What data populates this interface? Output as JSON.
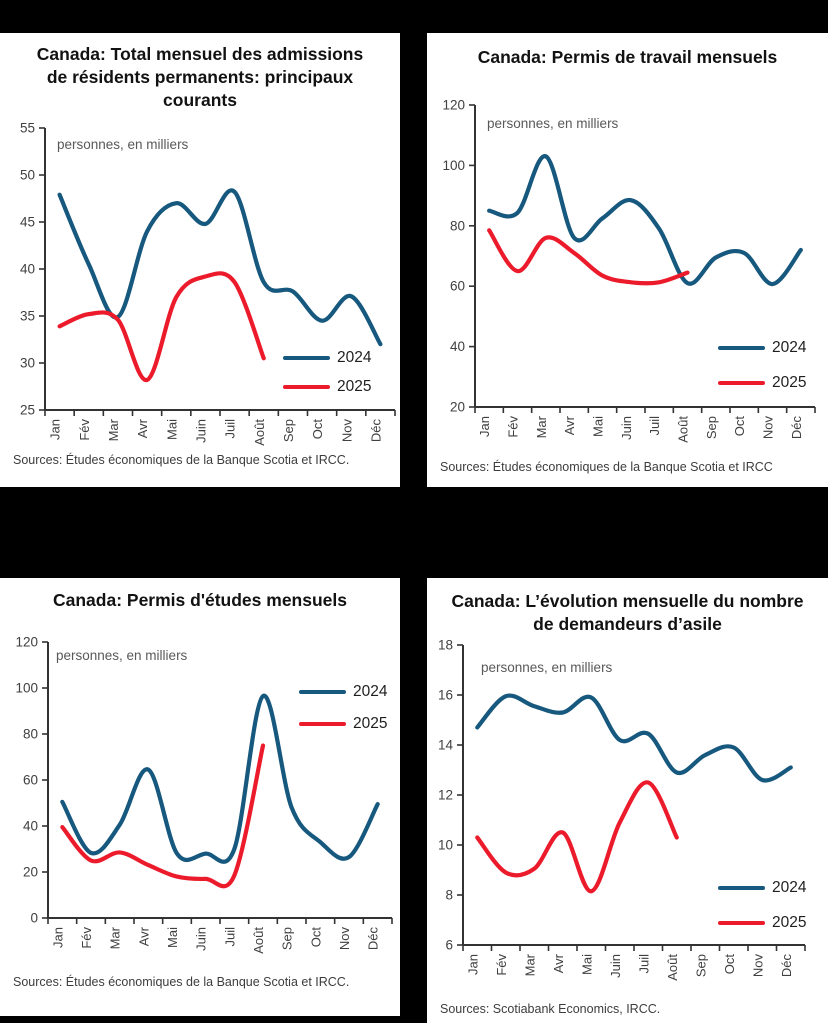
{
  "months": [
    "Jan",
    "Fév",
    "Mar",
    "Avr",
    "Mai",
    "Juin",
    "Juil",
    "Août",
    "Sep",
    "Oct",
    "Nov",
    "Déc"
  ],
  "colors": {
    "series_2024": "#16587E",
    "series_2025": "#EC1B2B",
    "axis": "#333333",
    "tick_label": "#404040",
    "unit_label": "#595959",
    "title": "#121212",
    "panel_background": "#FFFFFF",
    "page_background": "#000000"
  },
  "chart_data": [
    {
      "type": "line",
      "title": "Canada: Total mensuel des admissions de résidents permanents: principaux courants",
      "unit_label": "personnes, en milliers",
      "source": "Sources: Études économiques de la Banque Scotia et IRCC.",
      "categories": [
        "Jan",
        "Fév",
        "Mar",
        "Avr",
        "Mai",
        "Juin",
        "Juil",
        "Août",
        "Sep",
        "Oct",
        "Nov",
        "Déc"
      ],
      "ylim": [
        25,
        55
      ],
      "yticks": [
        55,
        50,
        45,
        40,
        35,
        30,
        25
      ],
      "grid": false,
      "legend_position": "bottom-right",
      "series": [
        {
          "name": "2024",
          "color": "#16587E",
          "values": [
            47.9,
            40.5,
            34.9,
            44,
            47,
            44.8,
            48.2,
            38.6,
            37.6,
            34.5,
            37.1,
            32
          ]
        },
        {
          "name": "2025",
          "color": "#EC1B2B",
          "values": [
            33.9,
            35.2,
            34.6,
            28.2,
            37,
            39.2,
            38.6,
            30.5,
            null,
            null,
            null,
            null
          ]
        }
      ]
    },
    {
      "type": "line",
      "title": "Canada: Permis de travail mensuels",
      "unit_label": "personnes, en milliers",
      "source": "Sources: Études économiques de la Banque Scotia et IRCC",
      "categories": [
        "Jan",
        "Fév",
        "Mar",
        "Avr",
        "Mai",
        "Juin",
        "Juil",
        "Août",
        "Sep",
        "Oct",
        "Nov",
        "Déc"
      ],
      "ylim": [
        20,
        120
      ],
      "yticks": [
        120,
        100,
        80,
        60,
        40,
        20
      ],
      "grid": false,
      "legend_position": "right",
      "series": [
        {
          "name": "2024",
          "color": "#16587E",
          "values": [
            85,
            84.3,
            103,
            76,
            82.5,
            88.5,
            79,
            61,
            69.5,
            71,
            60.7,
            72
          ]
        },
        {
          "name": "2025",
          "color": "#EC1B2B",
          "values": [
            78.5,
            65,
            76,
            71,
            63.5,
            61.3,
            61.3,
            64.5,
            null,
            null,
            null,
            null
          ]
        }
      ]
    },
    {
      "type": "line",
      "title": "Canada: Permis d'études mensuels",
      "unit_label": "personnes, en milliers",
      "source": "Sources: Études économiques de la Banque Scotia et IRCC.",
      "categories": [
        "Jan",
        "Fév",
        "Mar",
        "Avr",
        "Mai",
        "Juin",
        "Juil",
        "Août",
        "Sep",
        "Oct",
        "Nov",
        "Déc"
      ],
      "ylim": [
        0,
        120
      ],
      "yticks": [
        120,
        100,
        80,
        60,
        40,
        20,
        0
      ],
      "grid": false,
      "legend_position": "top-right",
      "series": [
        {
          "name": "2024",
          "color": "#16587E",
          "values": [
            50.5,
            28.3,
            40.5,
            64.5,
            28,
            28,
            30,
            96.5,
            48,
            33,
            26.5,
            49.5
          ]
        },
        {
          "name": "2025",
          "color": "#EC1B2B",
          "values": [
            39.5,
            25,
            28.5,
            23,
            18,
            17,
            18.5,
            75,
            null,
            null,
            null,
            null
          ]
        }
      ]
    },
    {
      "type": "line",
      "title": "Canada: L’évolution mensuelle du nombre de demandeurs d’asile",
      "unit_label": "personnes, en milliers",
      "source": "Sources: Scotiabank Economics, IRCC.",
      "categories": [
        "Jan",
        "Fév",
        "Mar",
        "Avr",
        "Mai",
        "Juin",
        "Juil",
        "Août",
        "Sep",
        "Oct",
        "Nov",
        "Déc"
      ],
      "ylim": [
        6,
        18
      ],
      "yticks": [
        18,
        16,
        14,
        12,
        10,
        8,
        6
      ],
      "grid": false,
      "legend_position": "right",
      "series": [
        {
          "name": "2024",
          "color": "#16587E",
          "values": [
            14.7,
            15.95,
            15.55,
            15.3,
            15.9,
            14.2,
            14.45,
            12.9,
            13.6,
            13.9,
            12.6,
            13.1
          ]
        },
        {
          "name": "2025",
          "color": "#EC1B2B",
          "values": [
            10.3,
            8.9,
            9.05,
            10.5,
            8.15,
            10.9,
            12.5,
            10.3,
            null,
            null,
            null,
            null
          ]
        }
      ]
    }
  ]
}
